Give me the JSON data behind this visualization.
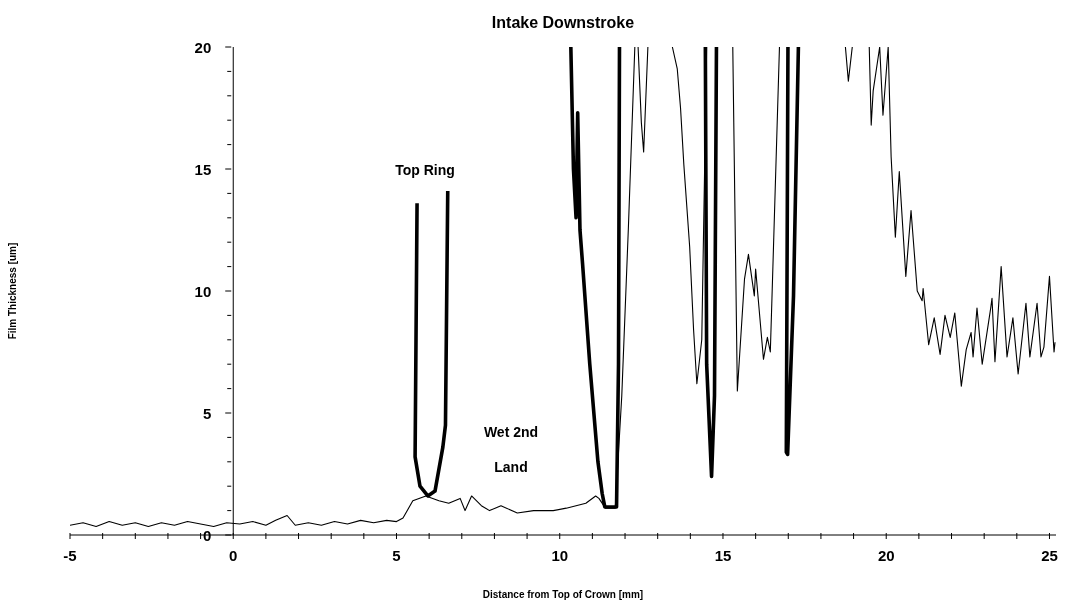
{
  "chart_data": {
    "type": "line",
    "title": "Intake Downstroke",
    "xlabel": "Distance from Top of Crown [mm]",
    "ylabel": "Film Thickness [um]",
    "xlim": [
      -5,
      25.2
    ],
    "ylim": [
      0,
      20
    ],
    "xticks": [
      -5,
      {
        "value": -4,
        "label": null
      },
      {
        "value": -3,
        "label": null
      },
      {
        "value": -2,
        "label": null
      },
      {
        "value": -1,
        "label": null
      },
      0,
      {
        "value": 1,
        "label": null
      },
      {
        "value": 2,
        "label": null
      },
      {
        "value": 3,
        "label": null
      },
      {
        "value": 4,
        "label": null
      },
      5,
      {
        "value": 6,
        "label": null
      },
      {
        "value": 7,
        "label": null
      },
      {
        "value": 8,
        "label": null
      },
      {
        "value": 9,
        "label": null
      },
      10,
      {
        "value": 11,
        "label": null
      },
      {
        "value": 12,
        "label": null
      },
      {
        "value": 13,
        "label": null
      },
      {
        "value": 14,
        "label": null
      },
      15,
      {
        "value": 16,
        "label": null
      },
      {
        "value": 17,
        "label": null
      },
      {
        "value": 18,
        "label": null
      },
      {
        "value": 19,
        "label": null
      },
      20,
      {
        "value": 21,
        "label": null
      },
      {
        "value": 22,
        "label": null
      },
      {
        "value": 23,
        "label": null
      },
      {
        "value": 24,
        "label": null
      },
      25
    ],
    "yticks": [
      0,
      {
        "value": 1,
        "label": null
      },
      {
        "value": 2,
        "label": null
      },
      {
        "value": 3,
        "label": null
      },
      {
        "value": 4,
        "label": null
      },
      5,
      {
        "value": 6,
        "label": null
      },
      {
        "value": 7,
        "label": null
      },
      {
        "value": 8,
        "label": null
      },
      {
        "value": 9,
        "label": null
      },
      10,
      {
        "value": 11,
        "label": null
      },
      {
        "value": 12,
        "label": null
      },
      {
        "value": 13,
        "label": null
      },
      {
        "value": 14,
        "label": null
      },
      15,
      {
        "value": 16,
        "label": null
      },
      {
        "value": 17,
        "label": null
      },
      {
        "value": 18,
        "label": null
      },
      {
        "value": 19,
        "label": null
      },
      20
    ],
    "grid": false,
    "legend": false,
    "marker": "none",
    "line_style": "solid",
    "annotations": [
      "Top Ring",
      "Wet 2nd Land"
    ],
    "series": [
      {
        "color": "#000000",
        "x": [
          -5,
          -4.6,
          -4.2,
          -3.8,
          -3.4,
          -3,
          -2.6,
          -2.2,
          -1.8,
          -1.4,
          -1,
          -0.6,
          -0.2,
          0.2,
          0.6,
          1.0,
          1.3,
          1.65,
          1.9,
          2.3,
          2.7,
          3.1,
          3.5,
          3.9,
          4.3,
          4.7,
          5.0,
          5.2,
          5.5,
          5.9,
          6.3,
          6.6,
          6.95,
          7.1,
          7.3,
          7.6,
          7.85,
          8.2,
          8.7,
          9.2,
          9.8,
          10.2,
          10.5,
          10.8,
          11.1,
          11.2,
          11.4,
          11.7,
          11.9,
          12.1,
          12.3,
          12.35,
          12.4,
          12.5,
          12.57,
          12.7,
          13.0,
          13.45,
          13.6,
          13.7,
          13.8,
          13.98,
          14.1,
          14.2,
          14.35,
          14.5,
          14.9,
          15.3,
          15.44,
          15.66,
          15.78,
          15.96,
          16.0,
          16.24,
          16.36,
          16.45,
          16.5,
          16.73,
          17.5,
          18.75,
          18.84,
          18.96,
          19.2,
          19.48,
          19.54,
          19.6,
          19.8,
          19.9,
          20.06,
          20.15,
          20.28,
          20.4,
          20.6,
          20.76,
          20.95,
          21.1,
          21.13,
          21.3,
          21.47,
          21.65,
          21.8,
          21.96,
          22.1,
          22.3,
          22.45,
          22.6,
          22.66,
          22.78,
          22.94,
          23.2,
          23.24,
          23.33,
          23.52,
          23.7,
          23.88,
          24.04,
          24.28,
          24.4,
          24.62,
          24.74,
          24.83,
          25.0,
          25.14,
          25.17
        ],
        "values": [
          0.4,
          0.5,
          0.35,
          0.55,
          0.4,
          0.5,
          0.35,
          0.5,
          0.4,
          0.55,
          0.45,
          0.35,
          0.5,
          0.45,
          0.55,
          0.4,
          0.6,
          0.8,
          0.4,
          0.5,
          0.4,
          0.55,
          0.45,
          0.6,
          0.5,
          0.6,
          0.55,
          0.7,
          1.4,
          1.6,
          1.4,
          1.3,
          1.5,
          1.0,
          1.6,
          1.2,
          1.0,
          1.2,
          0.9,
          1.0,
          1.0,
          1.1,
          1.2,
          1.3,
          1.6,
          1.5,
          1.1,
          1.1,
          5.7,
          12.5,
          20,
          null,
          20,
          16.9,
          15.7,
          20,
          null,
          20,
          19.1,
          17.5,
          15.2,
          11.8,
          8.4,
          6.2,
          8.0,
          20,
          null,
          20,
          5.9,
          10.5,
          11.5,
          9.8,
          10.9,
          7.2,
          8.1,
          7.5,
          9.7,
          20,
          null,
          20,
          18.6,
          20,
          null,
          20,
          16.8,
          18.2,
          20,
          17.2,
          20,
          15.5,
          12.2,
          14.9,
          10.6,
          13.3,
          10.0,
          9.6,
          10.1,
          7.8,
          8.9,
          7.4,
          9.0,
          8.1,
          9.1,
          6.1,
          7.6,
          8.3,
          7.3,
          9.3,
          7.0,
          9.3,
          9.7,
          7.1,
          11.0,
          7.3,
          8.9,
          6.6,
          9.5,
          7.3,
          9.5,
          7.3,
          7.7,
          10.6,
          7.5,
          7.9
        ]
      },
      {
        "color": "#000000",
        "x": [
          5.63,
          5.57,
          5.72,
          5.96,
          6.18,
          6.42,
          6.5,
          6.57,
          8,
          10.34,
          10.42,
          10.5,
          10.55,
          10.62,
          10.7,
          10.92,
          11.17,
          11.3,
          11.38,
          11.74,
          11.8,
          11.83,
          13,
          14.46,
          14.5,
          14.65,
          14.74,
          14.8,
          16,
          16.99,
          16.94,
          16.98,
          17.16,
          17.31
        ],
        "values": [
          13.6,
          3.2,
          2.0,
          1.6,
          1.8,
          3.6,
          4.5,
          14.1,
          null,
          20,
          15.0,
          13.0,
          17.3,
          12.5,
          11.1,
          7.0,
          3.0,
          1.7,
          1.15,
          1.15,
          7.0,
          20,
          null,
          20,
          7.0,
          2.4,
          5.7,
          20,
          null,
          20,
          3.4,
          3.3,
          9.8,
          20
        ]
      }
    ]
  }
}
